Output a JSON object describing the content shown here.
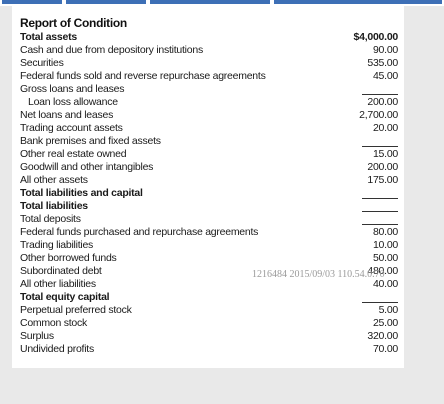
{
  "report": {
    "title": "Report of Condition",
    "watermark": "1216484 2015/09/03 110.54.0.70",
    "rows": [
      {
        "label": "Total assets",
        "value": "$4,000.00",
        "bold": true
      },
      {
        "label": "Cash and due from depository institutions",
        "value": "90.00"
      },
      {
        "label": "Securities",
        "value": "535.00"
      },
      {
        "label": "Federal funds sold and reverse repurchase agreements",
        "value": "45.00"
      },
      {
        "label": "Gross loans and leases"
      },
      {
        "label": "Loan loss allowance",
        "value": "200.00",
        "indent": true
      },
      {
        "label": "Net loans and leases",
        "value": "2,700.00"
      },
      {
        "label": "Trading account assets",
        "value": "20.00"
      },
      {
        "label": "Bank premises and fixed assets"
      },
      {
        "label": "Other real estate owned",
        "value": "15.00"
      },
      {
        "label": "Goodwill and other intangibles",
        "value": "200.00"
      },
      {
        "label": "All other assets",
        "value": "175.00"
      },
      {
        "label": "Total liabilities and capital",
        "bold": true
      },
      {
        "label": "Total liabilities",
        "bold": true
      },
      {
        "label": "Total deposits"
      },
      {
        "label": "Federal funds purchased and repurchase agreements",
        "value": "80.00"
      },
      {
        "label": "Trading liabilities",
        "value": "10.00"
      },
      {
        "label": "Other borrowed funds",
        "value": "50.00"
      },
      {
        "label": "Subordinated debt",
        "value": "480.00"
      },
      {
        "label": "All other liabilities",
        "value": "40.00"
      },
      {
        "label": "Total equity capital",
        "bold": true
      },
      {
        "label": "Perpetual preferred stock",
        "value": "5.00"
      },
      {
        "label": "Common stock",
        "value": "25.00"
      },
      {
        "label": "Surplus",
        "value": "320.00"
      },
      {
        "label": "Undivided profits",
        "value": "70.00"
      }
    ]
  }
}
